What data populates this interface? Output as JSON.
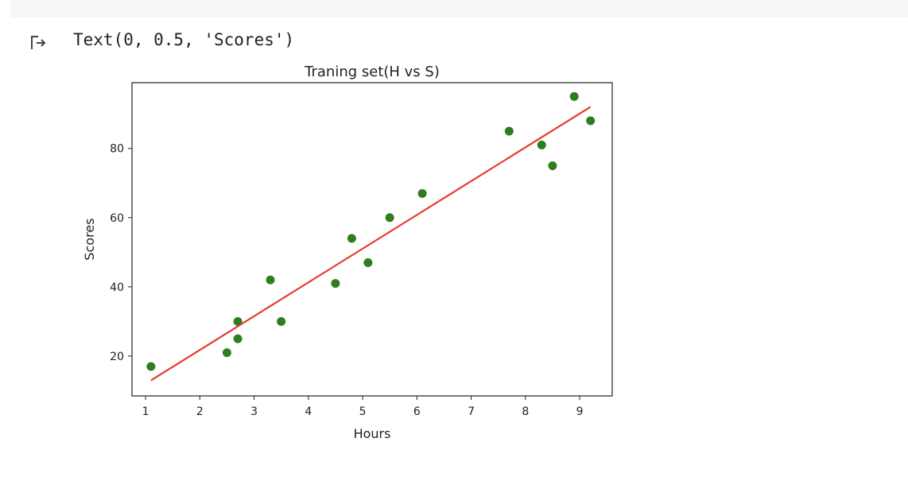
{
  "output": {
    "text": "Text(0, 0.5, 'Scores')",
    "icon": "output-arrow-icon"
  },
  "colors": {
    "points": "#2e7d1f",
    "line": "#e53c2a",
    "axes": "#222222",
    "strip": "#f7f7f7"
  },
  "chart_data": {
    "type": "scatter",
    "title": "Traning set(H vs S)",
    "xlabel": "Hours",
    "ylabel": "Scores",
    "xlim": [
      0.75,
      9.6
    ],
    "ylim": [
      8.5,
      99
    ],
    "xticks": [
      1,
      2,
      3,
      4,
      5,
      6,
      7,
      8,
      9
    ],
    "yticks": [
      20,
      40,
      60,
      80
    ],
    "grid": false,
    "points": [
      {
        "x": 1.1,
        "y": 17
      },
      {
        "x": 2.5,
        "y": 21
      },
      {
        "x": 2.7,
        "y": 30
      },
      {
        "x": 2.7,
        "y": 25
      },
      {
        "x": 3.3,
        "y": 42
      },
      {
        "x": 3.5,
        "y": 30
      },
      {
        "x": 4.5,
        "y": 41
      },
      {
        "x": 4.8,
        "y": 54
      },
      {
        "x": 5.1,
        "y": 47
      },
      {
        "x": 5.5,
        "y": 60
      },
      {
        "x": 6.1,
        "y": 67
      },
      {
        "x": 7.7,
        "y": 85
      },
      {
        "x": 8.3,
        "y": 81
      },
      {
        "x": 8.5,
        "y": 75
      },
      {
        "x": 8.9,
        "y": 95
      },
      {
        "x": 9.2,
        "y": 88
      }
    ],
    "fit_line": [
      {
        "x": 1.1,
        "y": 13
      },
      {
        "x": 9.2,
        "y": 92
      }
    ]
  }
}
